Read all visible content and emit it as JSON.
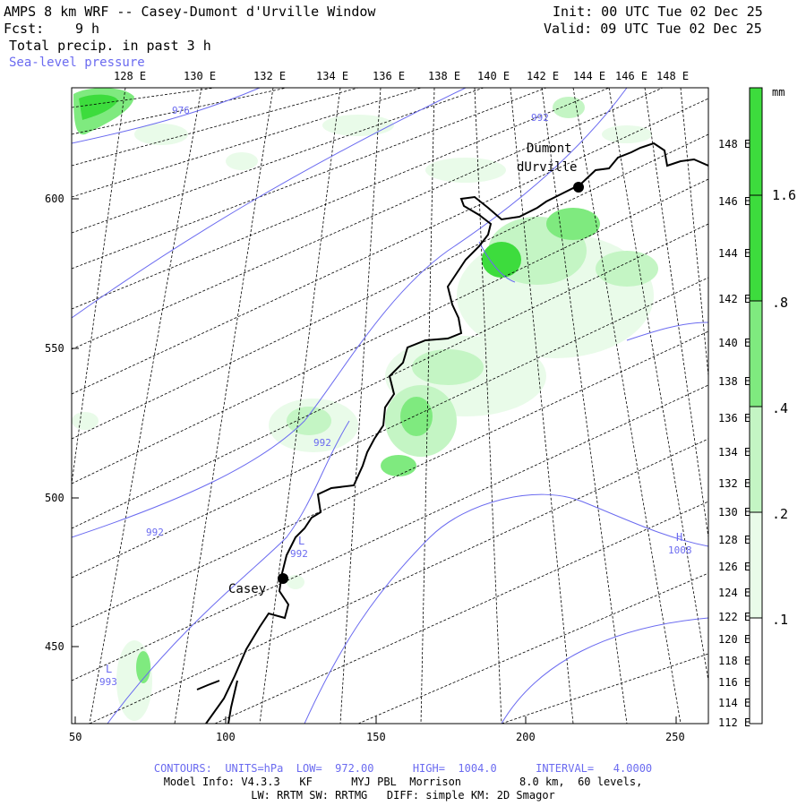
{
  "header": {
    "title": "AMPS 8 km WRF -- Casey-Dumont d'Urville Window",
    "fcst_label": "Fcst:",
    "fcst_value": "9 h",
    "field": "Total precip. in past 3 h",
    "overlay": "Sea-level pressure",
    "init": "Init: 00 UTC Tue 02 Dec 25",
    "valid": "Valid: 09 UTC Tue 02 Dec 25"
  },
  "top_lon_labels": [
    "128 E",
    "130 E",
    "132 E",
    "134 E",
    "136 E",
    "138 E",
    "140 E",
    "142 E",
    "144 E",
    "146 E",
    "148 E"
  ],
  "right_lon_labels": [
    "148 E",
    "146 E",
    "144 E",
    "142 E",
    "140 E",
    "138 E",
    "136 E",
    "134 E",
    "132 E",
    "130 E",
    "128 E",
    "126 E",
    "124 E",
    "122 E",
    "120 E",
    "118 E",
    "116 E",
    "114 E",
    "112 E"
  ],
  "left_axis": [
    "600",
    "550",
    "500",
    "450"
  ],
  "bottom_axis": [
    "50",
    "100",
    "150",
    "200",
    "250"
  ],
  "colorbar": {
    "unit": "mm",
    "levels": [
      ".1",
      ".2",
      ".4",
      ".8",
      "1.6"
    ],
    "colors": [
      "#ffffff",
      "#e9fbe9",
      "#c4f5c4",
      "#7fea7f",
      "#3ddc3d"
    ]
  },
  "stations": [
    {
      "name": "Casey",
      "x": 120,
      "y": 473
    },
    {
      "name": "Dumont",
      "name2": "dUrville",
      "x": 219,
      "y": 604
    }
  ],
  "pressure_labels": [
    {
      "text": "976"
    },
    {
      "text": "992"
    },
    {
      "text": "992"
    },
    {
      "text": "992"
    },
    {
      "text": "993"
    },
    {
      "text": "992"
    },
    {
      "text": "1008"
    }
  ],
  "pressure_marks": [
    {
      "text": "L",
      "value": "992"
    },
    {
      "text": "L",
      "value": "993"
    },
    {
      "text": "H",
      "value": "1008"
    }
  ],
  "footer": {
    "contours": "CONTOURS:  UNITS=hPa  LOW=  972.00      HIGH=  1004.0      INTERVAL=   4.0000",
    "model_info": "Model Info: V4.3.3   KF      MYJ PBL  Morrison         8.0 km,  60 levels,",
    "physics": "LW: RRTM SW: RRTMG   DIFF: simple KM: 2D Smagor"
  },
  "colors": {
    "contour": "#6b6bf0",
    "grid": "#000000",
    "coast": "#000000"
  }
}
